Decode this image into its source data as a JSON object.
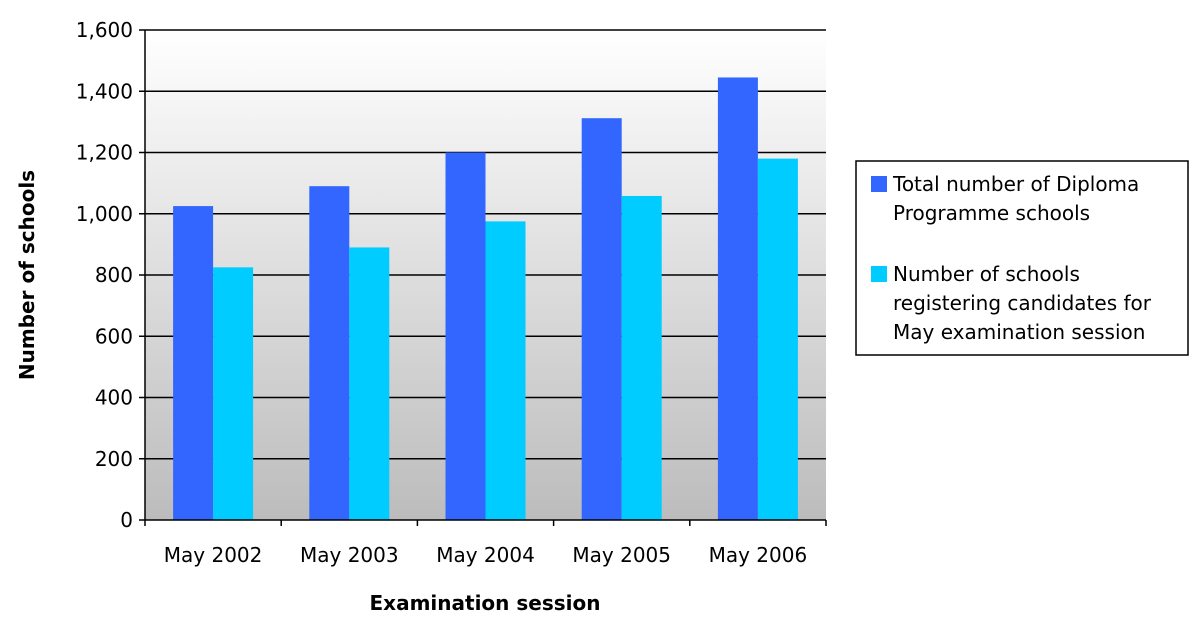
{
  "chart_data": {
    "type": "bar",
    "title": "",
    "xlabel": "Examination session",
    "ylabel": "Number of schools",
    "categories": [
      "May 2002",
      "May 2003",
      "May 2004",
      "May 2005",
      "May 2006"
    ],
    "series": [
      {
        "name": "Total number of Diploma Programme schools",
        "name_lines": [
          "Total number of Diploma",
          "Programme schools"
        ],
        "color": "#3366ff",
        "values": [
          1025,
          1090,
          1200,
          1312,
          1445
        ]
      },
      {
        "name": "Number of schools registering candidates for May examination session",
        "name_lines": [
          "Number of schools",
          "registering candidates for",
          "May examination session"
        ],
        "color": "#00ccff",
        "values": [
          825,
          890,
          975,
          1058,
          1180
        ]
      }
    ],
    "ylim": [
      0,
      1600
    ],
    "yticks": [
      0,
      200,
      400,
      600,
      800,
      1000,
      1200,
      1400,
      1600
    ],
    "ytick_labels": [
      "0",
      "200",
      "400",
      "600",
      "800",
      "1,000",
      "1,200",
      "1,400",
      "1,600"
    ],
    "grid": true,
    "background": "gradient-white-to-gray",
    "legend_position": "right"
  }
}
